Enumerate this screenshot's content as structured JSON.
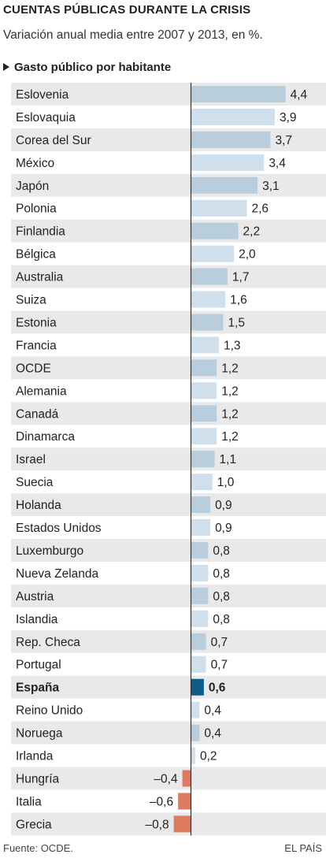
{
  "title": "CUENTAS PÚBLICAS DURANTE LA CRISIS",
  "subtitle": "Variación anual media entre 2007 y 2013, en %.",
  "section_label": "Gasto público por habitante",
  "footer": {
    "source": "Fuente: OCDE.",
    "brand": "EL PAÍS"
  },
  "colors": {
    "positive_dark": "#b9cedd",
    "positive_light": "#cfe0ec",
    "highlight": "#0d5c85",
    "negative": "#e07a5f",
    "row_band": "#e9e9e9",
    "axis": "#333333"
  },
  "chart_data": {
    "type": "bar",
    "orientation": "horizontal",
    "categories": [
      "Eslovenia",
      "Eslovaquia",
      "Corea del Sur",
      "México",
      "Japón",
      "Polonia",
      "Finlandia",
      "Bélgica",
      "Australia",
      "Suiza",
      "Estonia",
      "Francia",
      "OCDE",
      "Alemania",
      "Canadá",
      "Dinamarca",
      "Israel",
      "Suecia",
      "Holanda",
      "Estados Unidos",
      "Luxemburgo",
      "Nueva Zelanda",
      "Austria",
      "Islandia",
      "Rep. Checa",
      "Portugal",
      "España",
      "Reino Unido",
      "Noruega",
      "Irlanda",
      "Hungría",
      "Italia",
      "Grecia"
    ],
    "values": [
      4.4,
      3.9,
      3.7,
      3.4,
      3.1,
      2.6,
      2.2,
      2.0,
      1.7,
      1.6,
      1.5,
      1.3,
      1.2,
      1.2,
      1.2,
      1.2,
      1.1,
      1.0,
      0.9,
      0.9,
      0.8,
      0.8,
      0.8,
      0.8,
      0.7,
      0.7,
      0.6,
      0.4,
      0.4,
      0.2,
      -0.4,
      -0.6,
      -0.8
    ],
    "value_labels": [
      "4,4",
      "3,9",
      "3,7",
      "3,4",
      "3,1",
      "2,6",
      "2,2",
      "2,0",
      "1,7",
      "1,6",
      "1,5",
      "1,3",
      "1,2",
      "1,2",
      "1,2",
      "1,2",
      "1,1",
      "1,0",
      "0,9",
      "0,9",
      "0,8",
      "0,8",
      "0,8",
      "0,8",
      "0,7",
      "0,7",
      "0,6",
      "0,4",
      "0,4",
      "0,2",
      "–0,4",
      "–0,6",
      "–0,8"
    ],
    "highlight": "España",
    "xlim": [
      -0.8,
      4.4
    ],
    "ylabel": "",
    "xlabel": ""
  }
}
